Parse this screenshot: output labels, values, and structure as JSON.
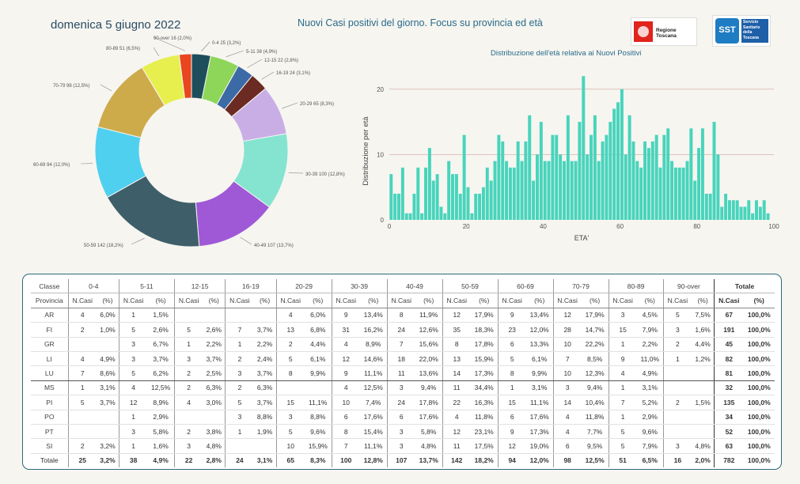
{
  "header": {
    "date": "domenica 5 giugno 2022",
    "title": "Nuovi Casi positivi del giorno. Focus su provincia ed età",
    "logo_rt": "Regione Toscana",
    "logo_sst_mark": "SST",
    "logo_sst_text": "Servizio Sanitario della Toscana"
  },
  "chart_data": [
    {
      "type": "pie",
      "donut": true,
      "labels": [
        "0-4",
        "5-11",
        "12-15",
        "16-19",
        "20-29",
        "30-39",
        "40-49",
        "50-59",
        "60-69",
        "70-79",
        "80-89",
        "90-over"
      ],
      "values": [
        25,
        38,
        22,
        24,
        65,
        100,
        107,
        142,
        94,
        98,
        51,
        16
      ],
      "percents": [
        "3,2%",
        "4,9%",
        "2,8%",
        "3,1%",
        "8,3%",
        "12,8%",
        "13,7%",
        "18,2%",
        "12,0%",
        "12,5%",
        "6,5%",
        "2,0%"
      ],
      "colors": [
        "#1e4e5c",
        "#8ed65a",
        "#3c6aa6",
        "#6b2b22",
        "#c9aee6",
        "#84e4d0",
        "#9f59d6",
        "#3e5f6a",
        "#4fd0ef",
        "#cdab4b",
        "#e6ef4e",
        "#e9451f"
      ],
      "slice_labels": [
        "0-4 25 (3,2%)",
        "5-11 38 (4,9%)",
        "12-15 22 (2,8%)",
        "16-19 24 (3,1%)",
        "20-29 65 (8,3%)",
        "30-39 100 (12,8%)",
        "40-49 107 (13,7%)",
        "50-59 142 (18,2%)",
        "60-69 94 (12,0%)",
        "70-79 98 (12,5%)",
        "80-89 51 (6,5%)",
        "90-over 16 (2,0%)"
      ]
    },
    {
      "type": "bar",
      "title": "Distribuzione dell'età relativa ai Nuovi Positivi",
      "xlabel": "ETA'",
      "ylabel": "Distribuzione per età",
      "x": [
        0,
        1,
        2,
        3,
        4,
        5,
        6,
        7,
        8,
        9,
        10,
        11,
        12,
        13,
        14,
        15,
        16,
        17,
        18,
        19,
        20,
        21,
        22,
        23,
        24,
        25,
        26,
        27,
        28,
        29,
        30,
        31,
        32,
        33,
        34,
        35,
        36,
        37,
        38,
        39,
        40,
        41,
        42,
        43,
        44,
        45,
        46,
        47,
        48,
        49,
        50,
        51,
        52,
        53,
        54,
        55,
        56,
        57,
        58,
        59,
        60,
        61,
        62,
        63,
        64,
        65,
        66,
        67,
        68,
        69,
        70,
        71,
        72,
        73,
        74,
        75,
        76,
        77,
        78,
        79,
        80,
        81,
        82,
        83,
        84,
        85,
        86,
        87,
        88,
        89,
        90,
        91,
        92,
        93,
        94,
        95,
        96,
        97,
        98
      ],
      "values": [
        7,
        4,
        4,
        8,
        1,
        1,
        4,
        8,
        1,
        8,
        11,
        6,
        7,
        2,
        1,
        9,
        7,
        7,
        4,
        13,
        5,
        1,
        4,
        4,
        5,
        8,
        6,
        9,
        13,
        12,
        9,
        8,
        8,
        12,
        9,
        12,
        16,
        6,
        10,
        15,
        9,
        9,
        13,
        13,
        10,
        9,
        16,
        9,
        9,
        15,
        22,
        10,
        13,
        16,
        9,
        12,
        13,
        15,
        17,
        18,
        20,
        10,
        16,
        12,
        9,
        8,
        12,
        11,
        12,
        13,
        8,
        13,
        14,
        9,
        8,
        8,
        8,
        9,
        14,
        6,
        11,
        14,
        4,
        4,
        15,
        10,
        2,
        4,
        3,
        3,
        3,
        2,
        2,
        3,
        1,
        3,
        2,
        3,
        1
      ],
      "xlim": [
        0,
        100
      ],
      "ylim": [
        0,
        23
      ],
      "xticks": [
        0,
        20,
        40,
        60,
        80,
        100
      ],
      "yticks": [
        0,
        10,
        20
      ],
      "color": "#48d4bc",
      "gridlines": true
    }
  ],
  "table": {
    "group_header_label": "Classe",
    "row_header_label": "Provincia",
    "classes": [
      "0-4",
      "5-11",
      "12-15",
      "16-19",
      "20-29",
      "30-39",
      "40-49",
      "50-59",
      "60-69",
      "70-79",
      "80-89",
      "90-over"
    ],
    "total_label": "Totale",
    "n_label": "N.Casi",
    "pct_label": "(%)",
    "rows": [
      {
        "prov": "AR",
        "cells": [
          [
            "4",
            "6,0%"
          ],
          [
            "1",
            "1,5%"
          ],
          [
            "",
            ""
          ],
          [
            "",
            ""
          ],
          [
            "4",
            "6,0%"
          ],
          [
            "9",
            "13,4%"
          ],
          [
            "8",
            "11,9%"
          ],
          [
            "12",
            "17,9%"
          ],
          [
            "9",
            "13,4%"
          ],
          [
            "12",
            "17,9%"
          ],
          [
            "3",
            "4,5%"
          ],
          [
            "5",
            "7,5%"
          ]
        ],
        "tot": "67",
        "pct": "100,0%"
      },
      {
        "prov": "FI",
        "cells": [
          [
            "2",
            "1,0%"
          ],
          [
            "5",
            "2,6%"
          ],
          [
            "5",
            "2,6%"
          ],
          [
            "7",
            "3,7%"
          ],
          [
            "13",
            "6,8%"
          ],
          [
            "31",
            "16,2%"
          ],
          [
            "24",
            "12,6%"
          ],
          [
            "35",
            "18,3%"
          ],
          [
            "23",
            "12,0%"
          ],
          [
            "28",
            "14,7%"
          ],
          [
            "15",
            "7,9%"
          ],
          [
            "3",
            "1,6%"
          ]
        ],
        "tot": "191",
        "pct": "100,0%"
      },
      {
        "prov": "GR",
        "cells": [
          [
            "",
            ""
          ],
          [
            "3",
            "6,7%"
          ],
          [
            "1",
            "2,2%"
          ],
          [
            "1",
            "2,2%"
          ],
          [
            "2",
            "4,4%"
          ],
          [
            "4",
            "8,9%"
          ],
          [
            "7",
            "15,6%"
          ],
          [
            "8",
            "17,8%"
          ],
          [
            "6",
            "13,3%"
          ],
          [
            "10",
            "22,2%"
          ],
          [
            "1",
            "2,2%"
          ],
          [
            "2",
            "4,4%"
          ]
        ],
        "tot": "45",
        "pct": "100,0%"
      },
      {
        "prov": "LI",
        "cells": [
          [
            "4",
            "4,9%"
          ],
          [
            "3",
            "3,7%"
          ],
          [
            "3",
            "3,7%"
          ],
          [
            "2",
            "2,4%"
          ],
          [
            "5",
            "6,1%"
          ],
          [
            "12",
            "14,6%"
          ],
          [
            "18",
            "22,0%"
          ],
          [
            "13",
            "15,9%"
          ],
          [
            "5",
            "6,1%"
          ],
          [
            "7",
            "8,5%"
          ],
          [
            "9",
            "11,0%"
          ],
          [
            "1",
            "1,2%"
          ]
        ],
        "tot": "82",
        "pct": "100,0%"
      },
      {
        "prov": "LU",
        "cells": [
          [
            "7",
            "8,6%"
          ],
          [
            "5",
            "6,2%"
          ],
          [
            "2",
            "2,5%"
          ],
          [
            "3",
            "3,7%"
          ],
          [
            "8",
            "9,9%"
          ],
          [
            "9",
            "11,1%"
          ],
          [
            "11",
            "13,6%"
          ],
          [
            "14",
            "17,3%"
          ],
          [
            "8",
            "9,9%"
          ],
          [
            "10",
            "12,3%"
          ],
          [
            "4",
            "4,9%"
          ],
          [
            "",
            ""
          ]
        ],
        "tot": "81",
        "pct": "100,0%"
      },
      {
        "prov": "MS",
        "cells": [
          [
            "1",
            "3,1%"
          ],
          [
            "4",
            "12,5%"
          ],
          [
            "2",
            "6,3%"
          ],
          [
            "2",
            "6,3%"
          ],
          [
            "",
            ""
          ],
          [
            "4",
            "12,5%"
          ],
          [
            "3",
            "9,4%"
          ],
          [
            "11",
            "34,4%"
          ],
          [
            "1",
            "3,1%"
          ],
          [
            "3",
            "9,4%"
          ],
          [
            "1",
            "3,1%"
          ],
          [
            "",
            ""
          ]
        ],
        "tot": "32",
        "pct": "100,0%"
      },
      {
        "prov": "PI",
        "cells": [
          [
            "5",
            "3,7%"
          ],
          [
            "12",
            "8,9%"
          ],
          [
            "4",
            "3,0%"
          ],
          [
            "5",
            "3,7%"
          ],
          [
            "15",
            "11,1%"
          ],
          [
            "10",
            "7,4%"
          ],
          [
            "24",
            "17,8%"
          ],
          [
            "22",
            "16,3%"
          ],
          [
            "15",
            "11,1%"
          ],
          [
            "14",
            "10,4%"
          ],
          [
            "7",
            "5,2%"
          ],
          [
            "2",
            "1,5%"
          ]
        ],
        "tot": "135",
        "pct": "100,0%"
      },
      {
        "prov": "PO",
        "cells": [
          [
            "",
            ""
          ],
          [
            "1",
            "2,9%"
          ],
          [
            "",
            ""
          ],
          [
            "3",
            "8,8%"
          ],
          [
            "3",
            "8,8%"
          ],
          [
            "6",
            "17,6%"
          ],
          [
            "6",
            "17,6%"
          ],
          [
            "4",
            "11,8%"
          ],
          [
            "6",
            "17,6%"
          ],
          [
            "4",
            "11,8%"
          ],
          [
            "1",
            "2,9%"
          ],
          [
            "",
            ""
          ]
        ],
        "tot": "34",
        "pct": "100,0%"
      },
      {
        "prov": "PT",
        "cells": [
          [
            "",
            ""
          ],
          [
            "3",
            "5,8%"
          ],
          [
            "2",
            "3,8%"
          ],
          [
            "1",
            "1,9%"
          ],
          [
            "5",
            "9,6%"
          ],
          [
            "8",
            "15,4%"
          ],
          [
            "3",
            "5,8%"
          ],
          [
            "12",
            "23,1%"
          ],
          [
            "9",
            "17,3%"
          ],
          [
            "4",
            "7,7%"
          ],
          [
            "5",
            "9,6%"
          ],
          [
            "",
            ""
          ]
        ],
        "tot": "52",
        "pct": "100,0%"
      },
      {
        "prov": "SI",
        "cells": [
          [
            "2",
            "3,2%"
          ],
          [
            "1",
            "1,6%"
          ],
          [
            "3",
            "4,8%"
          ],
          [
            "",
            ""
          ],
          [
            "10",
            "15,9%"
          ],
          [
            "7",
            "11,1%"
          ],
          [
            "3",
            "4,8%"
          ],
          [
            "11",
            "17,5%"
          ],
          [
            "12",
            "19,0%"
          ],
          [
            "6",
            "9,5%"
          ],
          [
            "5",
            "7,9%"
          ],
          [
            "3",
            "4,8%"
          ]
        ],
        "tot": "63",
        "pct": "100,0%"
      }
    ],
    "totals": {
      "label": "Totale",
      "cells": [
        [
          "25",
          "3,2%"
        ],
        [
          "38",
          "4,9%"
        ],
        [
          "22",
          "2,8%"
        ],
        [
          "24",
          "3,1%"
        ],
        [
          "65",
          "8,3%"
        ],
        [
          "100",
          "12,8%"
        ],
        [
          "107",
          "13,7%"
        ],
        [
          "142",
          "18,2%"
        ],
        [
          "94",
          "12,0%"
        ],
        [
          "98",
          "12,5%"
        ],
        [
          "51",
          "6,5%"
        ],
        [
          "16",
          "2,0%"
        ]
      ],
      "tot": "782",
      "pct": "100,0%"
    }
  }
}
